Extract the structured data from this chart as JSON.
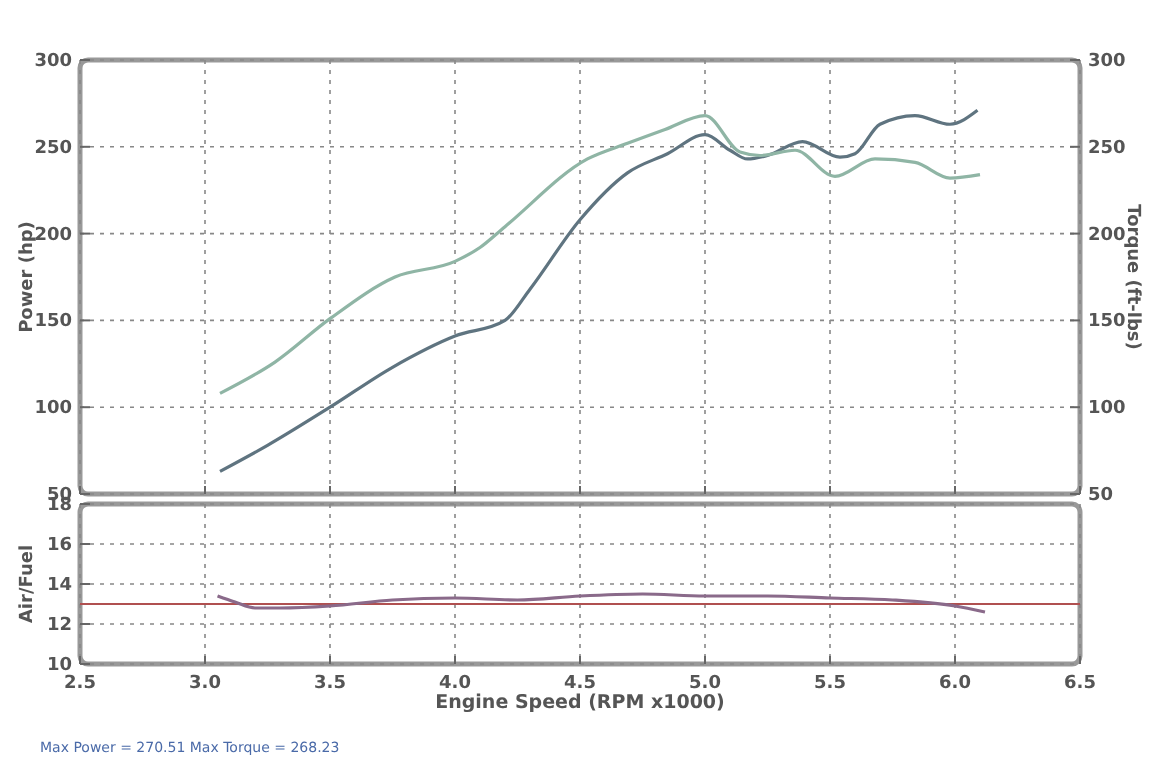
{
  "chart_data": [
    {
      "type": "line",
      "ylabel": "Power (hp)",
      "y2label": "Torque (ft-lbs)",
      "xlim": [
        2.5,
        6.5
      ],
      "xticks": [
        2.5,
        3,
        3.5,
        4,
        4.5,
        5,
        5.5,
        6,
        6.5
      ],
      "ylim": [
        50,
        300
      ],
      "yticks": [
        50,
        100,
        150,
        200,
        250,
        300
      ],
      "y2lim": [
        50,
        300
      ],
      "y2ticks": [
        50,
        100,
        150,
        200,
        250,
        300
      ],
      "tick_labels": "y",
      "grid": true,
      "line_style": "solid",
      "series": [
        {
          "color": "#5f7480",
          "x": [
            3.06,
            3.25,
            3.5,
            3.75,
            4.0,
            4.2,
            4.3,
            4.5,
            4.69,
            4.85,
            5.0,
            5.1,
            5.17,
            5.25,
            5.39,
            5.54,
            5.6,
            5.7,
            5.84,
            5.98,
            6.09
          ],
          "values": [
            63,
            78,
            100,
            123,
            141,
            150,
            168,
            208,
            235,
            246,
            257,
            248,
            243,
            245,
            253,
            244,
            246,
            263,
            268,
            263,
            271
          ]
        },
        {
          "color": "#8fb5a5",
          "x": [
            3.06,
            3.28,
            3.5,
            3.76,
            4.0,
            4.1,
            4.2,
            4.53,
            4.69,
            4.84,
            5.0,
            5.14,
            5.22,
            5.36,
            5.52,
            5.68,
            5.84,
            5.98,
            6.1
          ],
          "values": [
            108,
            126,
            151,
            175,
            184,
            192,
            204,
            243,
            252,
            260,
            268,
            247,
            245,
            248,
            233,
            243,
            241,
            232,
            234
          ]
        }
      ]
    },
    {
      "type": "line",
      "xlabel": "Engine Speed (RPM x1000)",
      "ylabel": "Air/Fuel",
      "xlim": [
        2.5,
        6.5
      ],
      "xticks": [
        {
          "value": 2.5,
          "label": "2.5"
        },
        {
          "value": 3,
          "label": "3.0"
        },
        {
          "value": 3.5,
          "label": "3.5"
        },
        {
          "value": 4,
          "label": "4.0"
        },
        {
          "value": 4.5,
          "label": "4.5"
        },
        {
          "value": 5,
          "label": "5.0"
        },
        {
          "value": 5.5,
          "label": "5.5"
        },
        {
          "value": 6,
          "label": "6.0"
        },
        {
          "value": 6.5,
          "label": "6.5"
        }
      ],
      "ylim": [
        10,
        18
      ],
      "yticks": [
        10,
        12,
        14,
        16,
        18
      ],
      "grid": true,
      "line_style": "solid",
      "ref_lines": [
        {
          "axis": "y",
          "value": 13,
          "color": "#b05050"
        }
      ],
      "annotations": [
        "Max Power = 270.51  Max Torque = 268.23"
      ],
      "series": [
        {
          "color": "#8a6a8a",
          "x": [
            3.05,
            3.12,
            3.2,
            3.3,
            3.5,
            3.75,
            4.0,
            4.25,
            4.5,
            4.75,
            5.0,
            5.25,
            5.5,
            5.75,
            6.0,
            6.12
          ],
          "values": [
            13.4,
            13.1,
            12.8,
            12.8,
            12.9,
            13.2,
            13.3,
            13.2,
            13.4,
            13.5,
            13.4,
            13.4,
            13.3,
            13.2,
            12.9,
            12.6
          ]
        }
      ]
    }
  ]
}
